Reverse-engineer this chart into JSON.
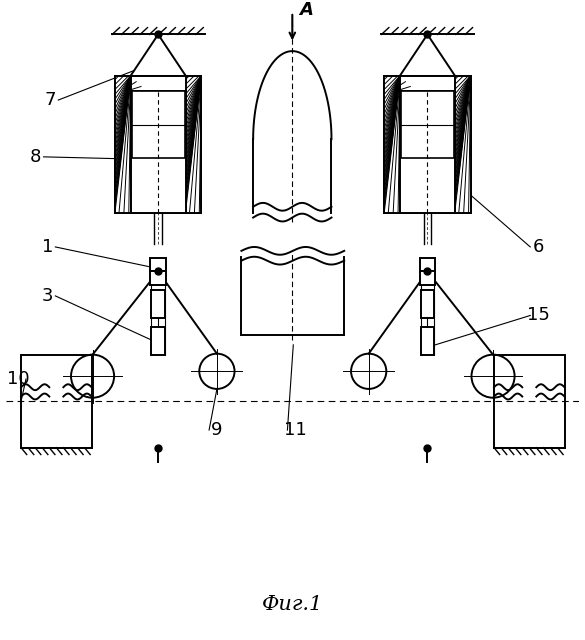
{
  "bg_color": "#ffffff",
  "line_color": "#000000",
  "fig_width": 5.85,
  "fig_height": 6.4,
  "title": "Фиг.1"
}
